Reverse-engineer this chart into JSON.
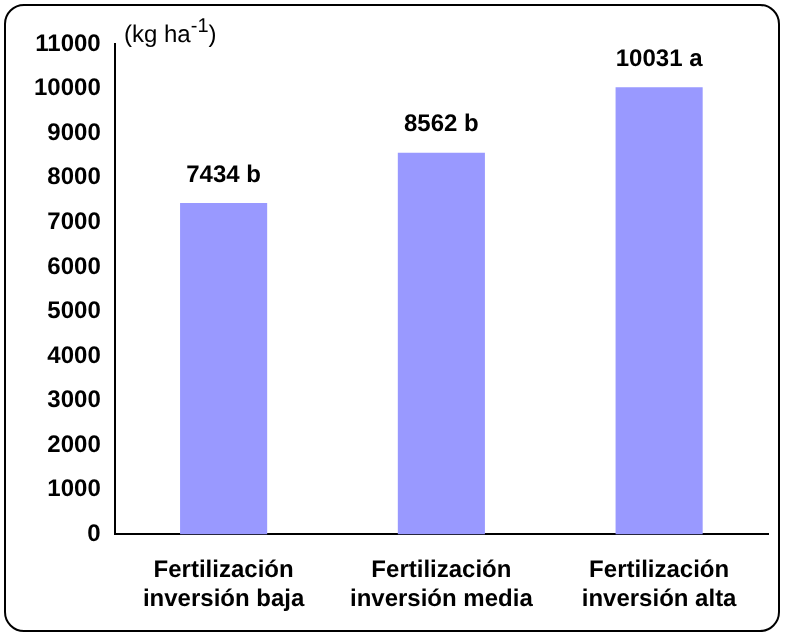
{
  "chart_data": {
    "type": "bar",
    "ylabel": "(kg ha$^{-1}$)",
    "categories": [
      "Fertilización inversión baja",
      "Fertilización inversión media",
      "Fertilización inversión alta"
    ],
    "values": [
      7434,
      8562,
      10031
    ],
    "color": "#9999ff",
    "value_labels": [
      "7434 b",
      "8562 b",
      "10031 a"
    ],
    "ylim": [
      0,
      11000
    ],
    "yticks": [
      0,
      1000,
      2000,
      3000,
      4000,
      5000,
      6000,
      7000,
      8000,
      9000,
      10000,
      11000
    ],
    "grid": false,
    "legend": false
  }
}
